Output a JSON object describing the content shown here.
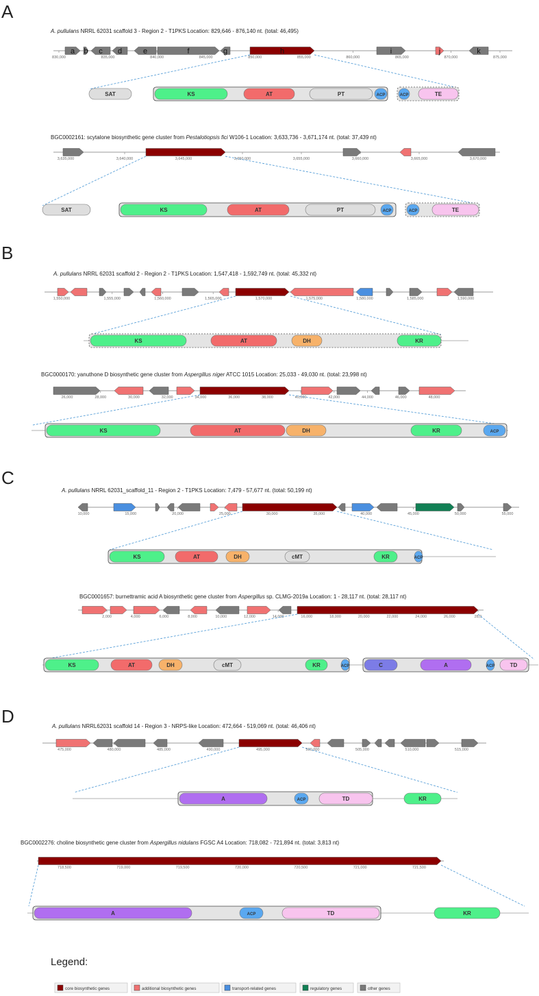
{
  "colors": {
    "core": "#8b0000",
    "additional": "#f07272",
    "transport": "#4a8fe0",
    "regulatory": "#118055",
    "other": "#7a7a7a",
    "KS": "#4ef08a",
    "AT": "#f26b6b",
    "DH": "#f7b26a",
    "KR": "#4ef08a",
    "ACP": "#5aa8f0",
    "TE": "#f8c4ee",
    "TD": "#f8c4ee",
    "A": "#b06ef0",
    "C": "#7c7ce6",
    "SAT": "#dedede",
    "PT": "#dedede",
    "cMT": "#dedede",
    "dashed_line": "#5aa0d8"
  },
  "panels": [
    {
      "letter": "A",
      "tracks": [
        {
          "title_parts": [
            {
              "t": "A. pullulans",
              "i": true
            },
            {
              "t": " NRRL 62031  scaffold  3 - Region 2 - T1PKS     Location: 829,646 - 876,140 nt. (total: 46,495)",
              "i": false
            }
          ],
          "ticks": [
            "830,000",
            "835,000",
            "840,000",
            "845,000",
            "850,000",
            "855,000",
            "860,000",
            "865,000",
            "870,000",
            "875,000"
          ],
          "genes": [
            {
              "label": "a",
              "type": "other"
            },
            {
              "label": "b",
              "type": "other"
            },
            {
              "label": "c",
              "type": "other"
            },
            {
              "label": "d",
              "type": "other"
            },
            {
              "label": "e",
              "type": "other"
            },
            {
              "label": "f",
              "type": "other"
            },
            {
              "label": "g",
              "type": "other"
            },
            {
              "label": "h",
              "type": "core"
            },
            {
              "label": "i",
              "type": "other"
            },
            {
              "label": "j",
              "type": "additional"
            },
            {
              "label": "k",
              "type": "other"
            }
          ],
          "domains": [
            "SAT",
            "KS",
            "AT",
            "PT",
            "ACP",
            "ACP",
            "TE"
          ]
        },
        {
          "title_parts": [
            {
              "t": "BGC0002161:  scytalone biosynthetic gene cluster from ",
              "i": false
            },
            {
              "t": "Pestalotiopsis fici",
              "i": true
            },
            {
              "t": " W106-1     Location: 3,633,736 - 3,671,174 nt. (total: 37,439 nt)",
              "i": false
            }
          ],
          "ticks": [
            "3,635,000",
            "3,640,000",
            "3,645,000",
            "3,650,000",
            "3,655,000",
            "3,660,000",
            "3,665,000",
            "3,670,000"
          ],
          "domains": [
            "SAT",
            "KS",
            "AT",
            "PT",
            "ACP",
            "ACP",
            "TE"
          ]
        }
      ]
    },
    {
      "letter": "B",
      "tracks": [
        {
          "title_parts": [
            {
              "t": "A. pullulans",
              "i": true
            },
            {
              "t": " NRRL 62031  scaffold  2 - Region 2 - T1PKS     Location: 1,547,418 - 1,592,749 nt. (total: 45,332 nt)",
              "i": false
            }
          ],
          "ticks": [
            "1,550,000",
            "1,555,000",
            "1,560,000",
            "1,565,000",
            "1,570,000",
            "1,575,000",
            "1,580,000",
            "1,585,000",
            "1,590,000"
          ],
          "domains": [
            "KS",
            "AT",
            "DH",
            "KR"
          ]
        },
        {
          "title_parts": [
            {
              "t": "BGC0000170:  yanuthone D biosynthetic gene cluster from ",
              "i": false
            },
            {
              "t": "Aspergillus niger",
              "i": true
            },
            {
              "t": " ATCC 1015     Location: 25,033 - 49,030 nt. (total: 23,998 nt)",
              "i": false
            }
          ],
          "ticks": [
            "26,000",
            "28,000",
            "30,000",
            "32,000",
            "34,000",
            "36,000",
            "38,000",
            "40,000",
            "42,000",
            "44,000",
            "46,000",
            "48,000"
          ],
          "domains": [
            "KS",
            "AT",
            "DH",
            "KR",
            "ACP"
          ]
        }
      ]
    },
    {
      "letter": "C",
      "tracks": [
        {
          "title_parts": [
            {
              "t": "A. pullulans",
              "i": true
            },
            {
              "t": " NRRL 62031_scaffold_11 - Region 2 - T1PKS     Location: 7,479 - 57,677 nt. (total: 50,199 nt)",
              "i": false
            }
          ],
          "ticks": [
            "10,000",
            "15,000",
            "20,000",
            "25,000",
            "30,000",
            "35,000",
            "40,000",
            "45,000",
            "50,000",
            "55,000"
          ],
          "domains": [
            "KS",
            "AT",
            "DH",
            "cMT",
            "KR",
            "ACP"
          ]
        },
        {
          "title_parts": [
            {
              "t": "BGC0001657:  burnettramic acid A biosynthetic gene cluster from ",
              "i": false
            },
            {
              "t": "Aspergillus",
              "i": true
            },
            {
              "t": " sp. CLMG-2019a     Location: 1 - 28,117 nt. (total: 28,117 nt)",
              "i": false
            }
          ],
          "ticks": [
            "2,000",
            "4,000",
            "6,000",
            "8,000",
            "10,000",
            "12,000",
            "14,000",
            "16,000",
            "18,000",
            "20,000",
            "22,000",
            "24,000",
            "26,000",
            "28,0"
          ],
          "domains": [
            "KS",
            "AT",
            "DH",
            "cMT",
            "KR",
            "ACP",
            "C",
            "A",
            "ACP",
            "TD"
          ]
        }
      ]
    },
    {
      "letter": "D",
      "tracks": [
        {
          "title_parts": [
            {
              "t": "A. pullulans",
              "i": true
            },
            {
              "t": " NRRL62031  scaffold  14 - Region 3 - NRPS-like     Location: 472,664 - 519,069 nt. (total: 46,406 nt)",
              "i": false
            }
          ],
          "ticks": [
            "475,000",
            "480,000",
            "485,000",
            "490,000",
            "495,000",
            "500,000",
            "505,000",
            "510,000",
            "515,000"
          ],
          "domains": [
            "A",
            "ACP",
            "TD",
            "KR"
          ]
        },
        {
          "title_parts": [
            {
              "t": "BGC0002276:  choline biosynthetic gene cluster from ",
              "i": false
            },
            {
              "t": "Aspergillus nidulans",
              "i": true
            },
            {
              "t": " FGSC A4     Location: 718,082 - 721,894 nt. (total: 3,813 nt)",
              "i": false
            }
          ],
          "ticks": [
            "718,500",
            "719,000",
            "719,500",
            "720,000",
            "720,500",
            "721,000",
            "721,500"
          ],
          "domains": [
            "A",
            "ACP",
            "TD",
            "KR"
          ]
        }
      ]
    }
  ],
  "legend": {
    "title": "Legend:",
    "items": [
      {
        "label": "core biosynthetic genes",
        "type": "core"
      },
      {
        "label": "additional biosynthetic genes",
        "type": "additional"
      },
      {
        "label": "transport-related genes",
        "type": "transport"
      },
      {
        "label": "regulatory genes",
        "type": "regulatory"
      },
      {
        "label": "other genes",
        "type": "other"
      }
    ]
  }
}
